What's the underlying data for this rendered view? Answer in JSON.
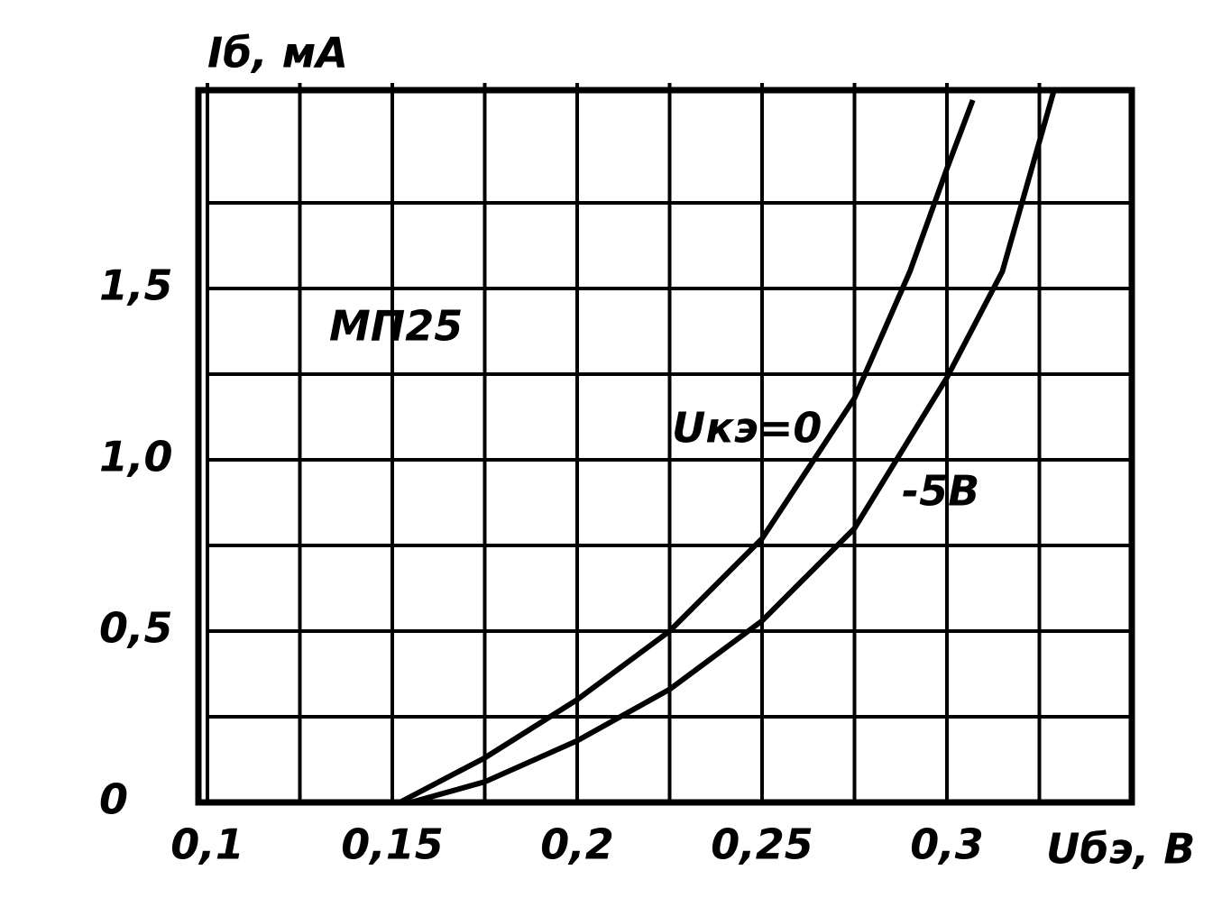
{
  "chart_data": {
    "type": "line",
    "y_label": "Iб, мА",
    "x_label": "Uбэ, В",
    "annotation": "МП25",
    "xlim": [
      0.1,
      0.35
    ],
    "xticks": [
      {
        "value": 0.1,
        "label": "0,1"
      },
      {
        "value": 0.15,
        "label": "0,15"
      },
      {
        "value": 0.2,
        "label": "0,2"
      },
      {
        "value": 0.25,
        "label": "0,25"
      },
      {
        "value": 0.3,
        "label": "0,3"
      }
    ],
    "ylim": [
      0,
      2.1
    ],
    "yticks": [
      0,
      {
        "value": 0.5,
        "label": "0,5"
      },
      {
        "value": 1.0,
        "label": "1,0"
      },
      {
        "value": 1.5,
        "label": "1,5"
      }
    ],
    "grid": true,
    "series": [
      {
        "name": "Uкэ=0",
        "color": "#000000",
        "x": [
          0.152,
          0.175,
          0.2,
          0.225,
          0.25,
          0.275,
          0.29,
          0.3,
          0.307
        ],
        "values": [
          0,
          0.13,
          0.3,
          0.5,
          0.77,
          1.18,
          1.55,
          1.85,
          2.05
        ]
      },
      {
        "name": "-5В",
        "color": "#000000",
        "x": [
          0.155,
          0.175,
          0.2,
          0.225,
          0.25,
          0.275,
          0.3,
          0.315,
          0.329
        ],
        "values": [
          0,
          0.06,
          0.18,
          0.33,
          0.53,
          0.8,
          1.24,
          1.55,
          2.08
        ]
      }
    ]
  }
}
